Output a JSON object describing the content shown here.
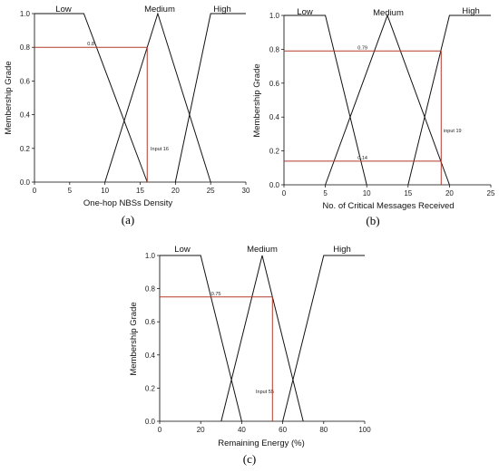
{
  "colors": {
    "line": "#111111",
    "marker": "#b23a2a"
  },
  "chart_data": [
    {
      "type": "line",
      "panel_label": "(a)",
      "xlabel": "One-hop NBSs Density",
      "ylabel": "Membership Grade",
      "xlim": [
        0,
        30
      ],
      "ylim": [
        0,
        1
      ],
      "xticks": [
        "0",
        "5",
        "10",
        "15",
        "20",
        "25",
        "30"
      ],
      "yticks": [
        "0.0",
        "0.2",
        "0.4",
        "0.6",
        "0.8",
        "1.0"
      ],
      "series": [
        {
          "name": "Low",
          "x": [
            0,
            7,
            16
          ],
          "y": [
            1,
            1,
            0
          ]
        },
        {
          "name": "Medium",
          "x": [
            10,
            17.5,
            25
          ],
          "y": [
            0,
            1,
            0
          ]
        },
        {
          "name": "High",
          "x": [
            20,
            25,
            30
          ],
          "y": [
            0,
            1,
            1
          ]
        }
      ],
      "input": {
        "label": "Input 16",
        "x": 16
      },
      "grades": [
        {
          "label": "0.8",
          "y": 0.8
        }
      ]
    },
    {
      "type": "line",
      "panel_label": "(b)",
      "xlabel": "No. of Critical Messages Received",
      "ylabel": "Membership Grade",
      "xlim": [
        0,
        25
      ],
      "ylim": [
        0,
        1
      ],
      "xticks": [
        "0",
        "5",
        "10",
        "15",
        "20",
        "25"
      ],
      "yticks": [
        "0.0",
        "0.2",
        "0.4",
        "0.6",
        "0.8",
        "1.0"
      ],
      "series": [
        {
          "name": "Low",
          "x": [
            0,
            5,
            10
          ],
          "y": [
            1,
            1,
            0
          ]
        },
        {
          "name": "Medium",
          "x": [
            5,
            12.5,
            20
          ],
          "y": [
            0,
            1,
            0
          ]
        },
        {
          "name": "High",
          "x": [
            15,
            20,
            25
          ],
          "y": [
            0,
            1,
            1
          ]
        }
      ],
      "input": {
        "label": "input 19",
        "x": 19
      },
      "grades": [
        {
          "label": "0.79",
          "y": 0.79
        },
        {
          "label": "0.14",
          "y": 0.14
        }
      ]
    },
    {
      "type": "line",
      "panel_label": "(c)",
      "xlabel": "Remaining Energy (%)",
      "ylabel": "Membership Grade",
      "xlim": [
        0,
        100
      ],
      "ylim": [
        0,
        1
      ],
      "xticks": [
        "0",
        "20",
        "40",
        "60",
        "80",
        "100"
      ],
      "yticks": [
        "0.0",
        "0.2",
        "0.4",
        "0.6",
        "0.8",
        "1.0"
      ],
      "series": [
        {
          "name": "Low",
          "x": [
            0,
            20,
            40
          ],
          "y": [
            1,
            1,
            0
          ]
        },
        {
          "name": "Medium",
          "x": [
            30,
            50,
            70
          ],
          "y": [
            0,
            1,
            0
          ]
        },
        {
          "name": "High",
          "x": [
            60,
            80,
            100
          ],
          "y": [
            0,
            1,
            1
          ]
        }
      ],
      "input": {
        "label": "Input 55",
        "x": 55
      },
      "grades": [
        {
          "label": "0.75",
          "y": 0.75
        }
      ]
    }
  ]
}
